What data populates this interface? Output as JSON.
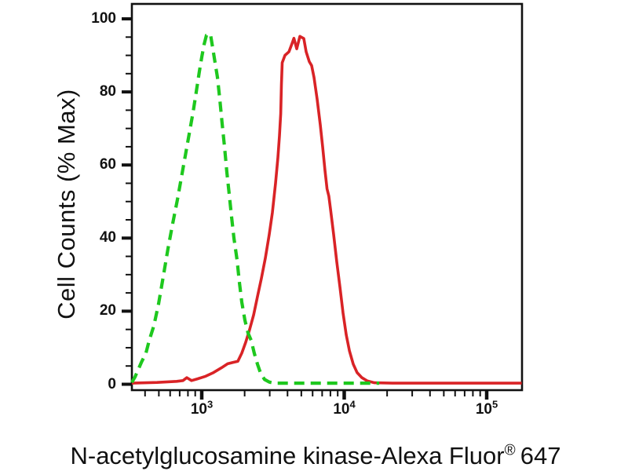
{
  "figure": {
    "background_color": "#ffffff",
    "axis_color": "#111111"
  },
  "chart_data": {
    "type": "line",
    "subtype": "flow-cytometry-histogram-overlay",
    "title": "",
    "ylabel": "Cell Counts (% Max)",
    "xlabel_full": "N-acetylglucosamine kinase-Alexa Fluor® 647",
    "xlabel_base": "N-acetylglucosamine kinase-Alexa Fluor",
    "xlabel_sup": "®",
    "xlabel_suffix": " 647",
    "x_scale": "log10",
    "x_range": [
      324,
      176000
    ],
    "ylim": [
      0,
      100
    ],
    "grid": false,
    "legend": "none",
    "y_major_ticks": [
      0,
      20,
      40,
      60,
      80,
      100
    ],
    "y_minor_ticks": [
      5,
      10,
      15,
      25,
      30,
      35,
      45,
      50,
      55,
      65,
      70,
      75,
      85,
      90,
      95
    ],
    "x_major_ticks": [
      {
        "base": "10",
        "exponent": "3",
        "value": 1000
      },
      {
        "base": "10",
        "exponent": "4",
        "value": 10000
      },
      {
        "base": "10",
        "exponent": "5",
        "value": 100000
      }
    ],
    "x_minor_ticks": [
      400,
      500,
      600,
      700,
      800,
      900,
      2000,
      3000,
      4000,
      5000,
      6000,
      7000,
      8000,
      9000,
      20000,
      30000,
      40000,
      50000,
      60000,
      70000,
      80000,
      90000
    ],
    "series": [
      {
        "name": "red-solid-stained",
        "style": "solid",
        "color": "#d92326",
        "points": [
          [
            323,
            0.3
          ],
          [
            485,
            0.5
          ],
          [
            667,
            0.8
          ],
          [
            738,
            1.0
          ],
          [
            786,
            1.8
          ],
          [
            848,
            1.0
          ],
          [
            938,
            1.5
          ],
          [
            1066,
            2.2
          ],
          [
            1210,
            3.2
          ],
          [
            1374,
            4.5
          ],
          [
            1520,
            5.6
          ],
          [
            1661,
            6.0
          ],
          [
            1792,
            6.3
          ],
          [
            1910,
            8.5
          ],
          [
            2036,
            11.5
          ],
          [
            2168,
            15
          ],
          [
            2312,
            19
          ],
          [
            2460,
            24
          ],
          [
            2623,
            29
          ],
          [
            2793,
            34.5
          ],
          [
            2978,
            41
          ],
          [
            3133,
            47
          ],
          [
            3297,
            55
          ],
          [
            3423,
            62
          ],
          [
            3511,
            68
          ],
          [
            3581,
            74
          ],
          [
            3624,
            82
          ],
          [
            3672,
            88
          ],
          [
            3837,
            90
          ],
          [
            4093,
            91
          ],
          [
            4305,
            93.3
          ],
          [
            4437,
            94.7
          ],
          [
            4640,
            91.8
          ],
          [
            4883,
            95.2
          ],
          [
            5203,
            94.6
          ],
          [
            5407,
            91
          ],
          [
            5688,
            88.3
          ],
          [
            5908,
            87.2
          ],
          [
            6137,
            84
          ],
          [
            6456,
            78
          ],
          [
            6795,
            71
          ],
          [
            7056,
            65
          ],
          [
            7332,
            58.5
          ],
          [
            7572,
            53.5
          ],
          [
            7802,
            51.5
          ],
          [
            8007,
            48
          ],
          [
            8424,
            41
          ],
          [
            8870,
            33.5
          ],
          [
            9333,
            26.5
          ],
          [
            9814,
            19.5
          ],
          [
            10330,
            13.5
          ],
          [
            10870,
            9.2
          ],
          [
            11570,
            5.5
          ],
          [
            12320,
            3.2
          ],
          [
            13300,
            1.8
          ],
          [
            14520,
            0.9
          ],
          [
            16290,
            0.4
          ],
          [
            21800,
            0.3
          ],
          [
            176000,
            0.3
          ]
        ]
      },
      {
        "name": "green-dashed-control",
        "style": "dashed",
        "color": "#1ec81e",
        "points": [
          [
            323,
            0.5
          ],
          [
            340,
            2
          ],
          [
            358,
            4
          ],
          [
            377,
            6
          ],
          [
            406,
            8.5
          ],
          [
            428,
            12
          ],
          [
            461,
            16
          ],
          [
            498,
            22
          ],
          [
            537,
            29.5
          ],
          [
            579,
            37
          ],
          [
            625,
            44
          ],
          [
            675,
            50.5
          ],
          [
            719,
            56.5
          ],
          [
            766,
            62.5
          ],
          [
            816,
            68.5
          ],
          [
            870,
            74.5
          ],
          [
            915,
            80
          ],
          [
            962,
            85.5
          ],
          [
            1000,
            89.5
          ],
          [
            1039,
            93
          ],
          [
            1079,
            95.5
          ],
          [
            1151,
            95.8
          ],
          [
            1194,
            92
          ],
          [
            1241,
            88
          ],
          [
            1289,
            84
          ],
          [
            1339,
            78
          ],
          [
            1389,
            71.5
          ],
          [
            1445,
            65
          ],
          [
            1500,
            58
          ],
          [
            1559,
            52
          ],
          [
            1618,
            46
          ],
          [
            1683,
            40
          ],
          [
            1770,
            34
          ],
          [
            1837,
            28
          ],
          [
            1910,
            22.5
          ],
          [
            2009,
            17.5
          ],
          [
            2113,
            14
          ],
          [
            2223,
            12
          ],
          [
            2338,
            8.5
          ],
          [
            2460,
            5.5
          ],
          [
            2588,
            3
          ],
          [
            2760,
            1.3
          ],
          [
            2978,
            0.6
          ],
          [
            3250,
            0.3
          ],
          [
            17600,
            0.3
          ]
        ]
      }
    ]
  }
}
